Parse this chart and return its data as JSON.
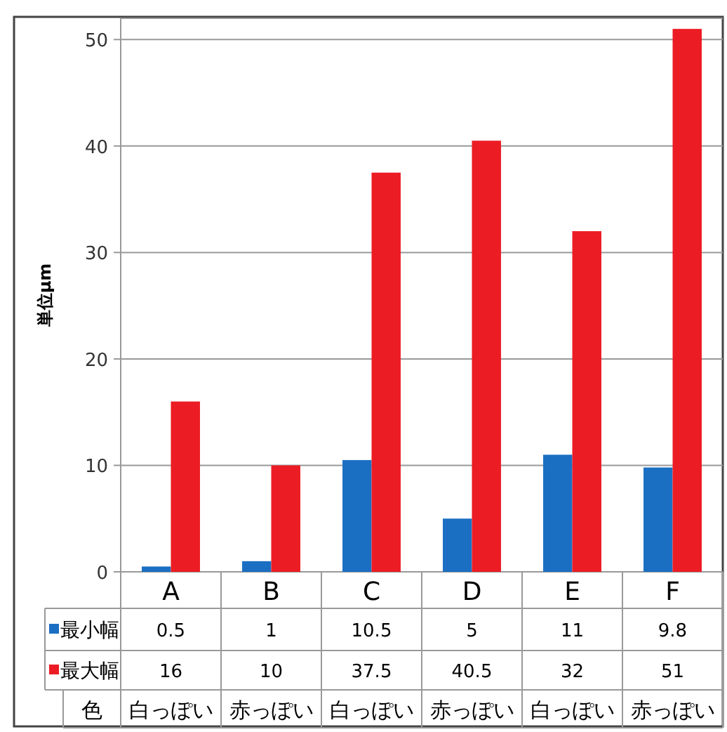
{
  "chart_data": {
    "type": "bar",
    "ylabel": "単位μm",
    "categories": [
      "A",
      "B",
      "C",
      "D",
      "E",
      "F"
    ],
    "series": [
      {
        "name": "最小幅",
        "color": "#1b6fc2",
        "values": [
          0.5,
          1,
          10.5,
          5,
          11,
          9.8
        ]
      },
      {
        "name": "最大幅",
        "color": "#ec1c24",
        "values": [
          16,
          10,
          37.5,
          40.5,
          32,
          51
        ]
      }
    ],
    "ylim": [
      0,
      52
    ],
    "yticks": [
      0,
      10,
      20,
      30,
      40,
      50
    ],
    "grid": "y",
    "legend": "bottom left",
    "data_labels": true,
    "annotations": [
      "色",
      "白っぽい",
      "赤っぽい",
      "白っぽい",
      "赤っぽい",
      "白っぽい",
      "赤っぽい"
    ]
  }
}
